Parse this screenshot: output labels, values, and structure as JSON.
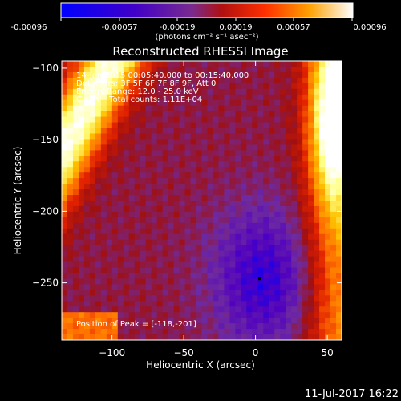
{
  "colorbar": {
    "tick_labels": [
      "-0.00096",
      "-0.00057",
      "-0.00019",
      "0.00019",
      "0.00057",
      "0.00096"
    ],
    "unit_label": "(photons cm⁻² s⁻¹ asec⁻²)",
    "range": [
      -0.00096,
      0.00096
    ]
  },
  "chart_data": {
    "type": "heatmap",
    "title": "Reconstructed RHESSI Image",
    "xlabel": "Heliocentric X (arcsec)",
    "ylabel": "Heliocentric Y (arcsec)",
    "xlim": [
      -135,
      60
    ],
    "ylim": [
      -290,
      -95
    ],
    "x_ticks": [
      -100,
      -50,
      0,
      50
    ],
    "y_ticks": [
      -100,
      -150,
      -200,
      -250
    ],
    "x_tick_labels": [
      "−100",
      "−50",
      "0",
      "50"
    ],
    "y_tick_labels": [
      "−100",
      "−150",
      "−200",
      "−250"
    ],
    "info_lines": [
      "14-Jan-2015 00:05:40.000 to 00:15:40.000",
      "Detectors: 3F 5F 6F 7F 8F 9F, Att 0",
      "Energy Range: 12.0 - 25.0 keV",
      "Clean    Total counts: 1.11E+04"
    ],
    "peak_label": "Position of Peak = [-118,-201]",
    "marker": {
      "x": 3,
      "y": -247
    },
    "colormap": [
      "#0000ff",
      "#5000c0",
      "#6e2aa0",
      "#a01010",
      "#e02000",
      "#ff7000",
      "#ffc000",
      "#ffff80",
      "#ffffff"
    ]
  },
  "footer": {
    "timestamp": "11-Jul-2017 16:22"
  }
}
